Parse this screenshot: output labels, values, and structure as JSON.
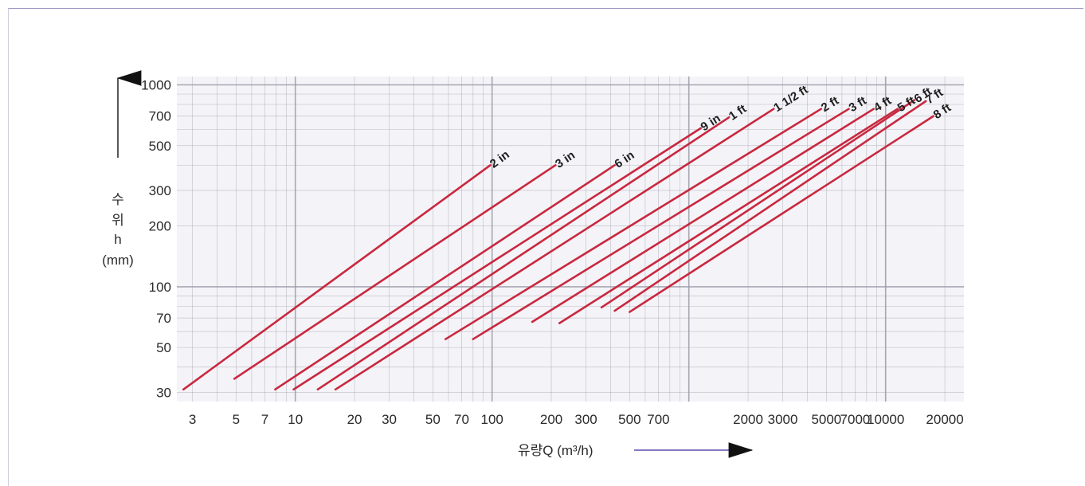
{
  "chart_data": {
    "type": "line",
    "x_scale": "log",
    "y_scale": "log",
    "xlim": [
      2.5,
      25000
    ],
    "ylim": [
      27,
      1100
    ],
    "grid": true,
    "xlabel": "유량Q (m³/h)",
    "ylabel_lines": [
      "수",
      "위",
      "h",
      "(mm)"
    ],
    "x_ticks": [
      {
        "value": 3,
        "label": "3"
      },
      {
        "value": 5,
        "label": "5"
      },
      {
        "value": 7,
        "label": "7"
      },
      {
        "value": 10,
        "label": "10"
      },
      {
        "value": 20,
        "label": "20"
      },
      {
        "value": 30,
        "label": "30"
      },
      {
        "value": 50,
        "label": "50"
      },
      {
        "value": 70,
        "label": "70"
      },
      {
        "value": 100,
        "label": "100"
      },
      {
        "value": 200,
        "label": "200"
      },
      {
        "value": 300,
        "label": "300"
      },
      {
        "value": 500,
        "label": "500"
      },
      {
        "value": 700,
        "label": "700"
      },
      {
        "value": 2000,
        "label": "2000"
      },
      {
        "value": 3000,
        "label": "3000"
      },
      {
        "value": 5000,
        "label": "5000"
      },
      {
        "value": 7000,
        "label": "7000"
      },
      {
        "value": 10000,
        "label": "10000"
      },
      {
        "value": 20000,
        "label": "20000"
      }
    ],
    "y_ticks": [
      {
        "value": 30,
        "label": "30"
      },
      {
        "value": 50,
        "label": "50"
      },
      {
        "value": 70,
        "label": "70"
      },
      {
        "value": 100,
        "label": "100"
      },
      {
        "value": 200,
        "label": "200"
      },
      {
        "value": 300,
        "label": "300"
      },
      {
        "value": 500,
        "label": "500"
      },
      {
        "value": 700,
        "label": "700"
      },
      {
        "value": 1000,
        "label": "1000"
      }
    ],
    "series": [
      {
        "name": "2 in",
        "x": [
          2.7,
          98
        ],
        "y": [
          31,
          400
        ]
      },
      {
        "name": "3 in",
        "x": [
          4.9,
          210
        ],
        "y": [
          35,
          400
        ]
      },
      {
        "name": "6 in",
        "x": [
          7.9,
          420
        ],
        "y": [
          31,
          400
        ]
      },
      {
        "name": "9 in",
        "x": [
          9.8,
          1150
        ],
        "y": [
          31,
          610
        ]
      },
      {
        "name": "1 ft",
        "x": [
          13,
          1600
        ],
        "y": [
          31,
          690
        ]
      },
      {
        "name": "1 1/2 ft",
        "x": [
          16,
          2700
        ],
        "y": [
          31,
          760
        ]
      },
      {
        "name": "2 ft",
        "x": [
          58,
          4700
        ],
        "y": [
          55,
          760
        ]
      },
      {
        "name": "3 ft",
        "x": [
          80,
          6500
        ],
        "y": [
          55,
          760
        ]
      },
      {
        "name": "4 ft",
        "x": [
          160,
          8700
        ],
        "y": [
          67,
          760
        ]
      },
      {
        "name": "5 ft",
        "x": [
          220,
          11500
        ],
        "y": [
          66,
          760
        ]
      },
      {
        "name": "6 ft",
        "x": [
          360,
          14000
        ],
        "y": [
          79,
          840
        ]
      },
      {
        "name": "7 ft",
        "x": [
          420,
          16000
        ],
        "y": [
          76,
          830
        ]
      },
      {
        "name": "8 ft",
        "x": [
          500,
          17500
        ],
        "y": [
          75,
          700
        ]
      }
    ],
    "colors": {
      "series": "#c8283f",
      "grid": "#9a9aa8",
      "frame": "#9a93c2"
    }
  }
}
